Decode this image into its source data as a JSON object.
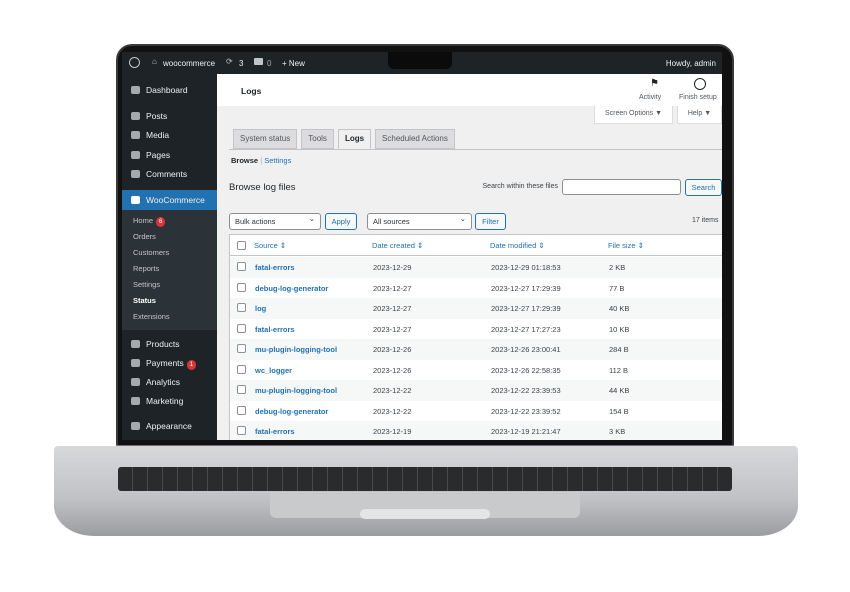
{
  "adminbar": {
    "site": "woocommerce",
    "updates": "3",
    "comments": "0",
    "new": "+ New",
    "howdy": "Howdy, admin"
  },
  "sidebar": {
    "items": [
      {
        "label": "Dashboard"
      },
      {
        "label": "Posts"
      },
      {
        "label": "Media"
      },
      {
        "label": "Pages"
      },
      {
        "label": "Comments"
      },
      {
        "label": "WooCommerce"
      },
      {
        "label": "Products"
      },
      {
        "label": "Payments",
        "badge": "1"
      },
      {
        "label": "Analytics"
      },
      {
        "label": "Marketing"
      },
      {
        "label": "Appearance"
      }
    ],
    "submenu": [
      {
        "label": "Home",
        "badge": "6"
      },
      {
        "label": "Orders"
      },
      {
        "label": "Customers"
      },
      {
        "label": "Reports"
      },
      {
        "label": "Settings"
      },
      {
        "label": "Status"
      },
      {
        "label": "Extensions"
      }
    ]
  },
  "header": {
    "title": "Logs",
    "activity": "Activity",
    "finish": "Finish setup"
  },
  "screen_options": "Screen Options ▼",
  "help": "Help ▼",
  "tabs": [
    "System status",
    "Tools",
    "Logs",
    "Scheduled Actions"
  ],
  "subnav": {
    "browse": "Browse",
    "sep": "|",
    "settings": "Settings"
  },
  "page": {
    "heading": "Browse log files",
    "search_label": "Search within these files",
    "search_value": "",
    "search_button": "Search"
  },
  "toolbar": {
    "bulk": "Bulk actions",
    "apply": "Apply",
    "sources": "All sources",
    "filter": "Filter",
    "count": "17 items"
  },
  "table": {
    "columns": [
      "Source ⇕",
      "Date created ⇕",
      "Date modified ⇕",
      "File size ⇕"
    ],
    "rows": [
      [
        "fatal-errors",
        "2023-12-29",
        "2023-12-29 01:18:53",
        "2 KB"
      ],
      [
        "debug-log-generator",
        "2023-12-27",
        "2023-12-27 17:29:39",
        "77 B"
      ],
      [
        "log",
        "2023-12-27",
        "2023-12-27 17:29:39",
        "40 KB"
      ],
      [
        "fatal-errors",
        "2023-12-27",
        "2023-12-27 17:27:23",
        "10 KB"
      ],
      [
        "mu-plugin-logging-tool",
        "2023-12-26",
        "2023-12-26 23:00:41",
        "284 B"
      ],
      [
        "wc_logger",
        "2023-12-26",
        "2023-12-26 22:58:35",
        "112 B"
      ],
      [
        "mu-plugin-logging-tool",
        "2023-12-22",
        "2023-12-22 23:39:53",
        "44 KB"
      ],
      [
        "debug-log-generator",
        "2023-12-22",
        "2023-12-22 23:39:52",
        "154 B"
      ],
      [
        "fatal-errors",
        "2023-12-19",
        "2023-12-19 21:21:47",
        "3 KB"
      ]
    ]
  },
  "colors": {
    "accent": "#2271b1",
    "adminbar": "#1d2327",
    "badge": "#d63638"
  }
}
